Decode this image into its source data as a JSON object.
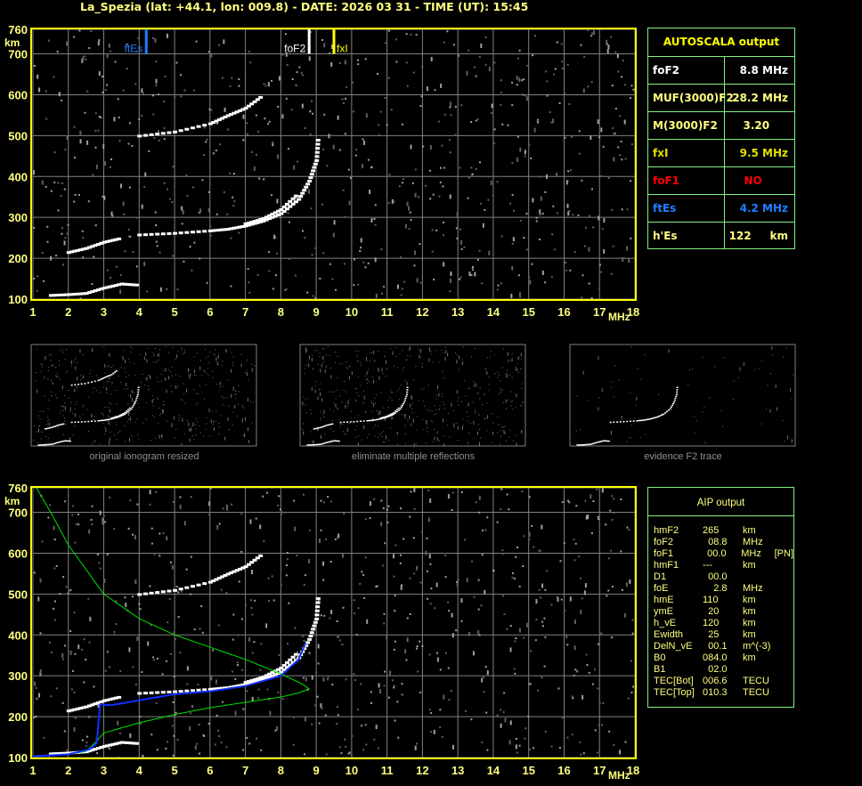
{
  "header": {
    "title": "La_Spezia (lat: +44.1, lon: 009.8) - DATE: 2026 03 31 - TIME (UT): 15:45"
  },
  "colors": {
    "axis": "#ffff00",
    "grid": "#808080",
    "panel_border": "#80f080",
    "ftEs": "#1e7fff",
    "foF2": "#ffffff",
    "fxI": "#ffff00",
    "foF1": "#ff0000",
    "profile": "#00e000",
    "fit": "#1030ff"
  },
  "autoscala": {
    "title": "AUTOSCALA output",
    "rows": [
      {
        "key": "foF2",
        "value": "8.8 MHz",
        "color": "#ffffff"
      },
      {
        "key": "MUF(3000)F2",
        "value": "28.2 MHz",
        "color": "#ffff80"
      },
      {
        "key": "M(3000)F2",
        "value": "3.20     ",
        "color": "#ffff80"
      },
      {
        "key": "fxI",
        "value": "9.5 MHz",
        "color": "#e0e000"
      },
      {
        "key": "foF1",
        "value": "NO       ",
        "color": "#ff0000"
      },
      {
        "key": "ftEs",
        "value": "4.2 MHz",
        "color": "#1e7fff"
      },
      {
        "key": "h'Es",
        "value": "122     km",
        "color": "#ffff80"
      }
    ]
  },
  "aip": {
    "title": "AIP output",
    "rows": [
      [
        "hmF2",
        "265",
        "km",
        ""
      ],
      [
        "foF2",
        "  08.8",
        "MHz",
        ""
      ],
      [
        "foF1",
        "  00.0",
        "MHz",
        "[PN]"
      ],
      [
        "hmF1",
        "---",
        "km",
        ""
      ],
      [
        "D1",
        "  00.0",
        "",
        ""
      ],
      [
        "foE",
        "    2.8",
        "MHz",
        ""
      ],
      [
        "hmE",
        "110",
        "km",
        ""
      ],
      [
        "ymE",
        "  20",
        "km",
        ""
      ],
      [
        "h_vE",
        "120",
        "km",
        ""
      ],
      [
        "Ewidth",
        "  25",
        "km",
        ""
      ],
      [
        "DelN_vE",
        "  00.1",
        "m^(-3)",
        ""
      ],
      [
        "B0",
        "084.0",
        "km",
        ""
      ],
      [
        "B1",
        "  02.0",
        "",
        ""
      ],
      [
        "TEC[Bot]",
        "006.6",
        "TECU",
        ""
      ],
      [
        "TEC[Top]",
        "010.3",
        "TECU",
        ""
      ]
    ]
  },
  "thumbnails": [
    {
      "caption": "original ionogram resized"
    },
    {
      "caption": "eliminate multiple reflections"
    },
    {
      "caption": "evidence F2 trace"
    }
  ],
  "chart_data": [
    {
      "type": "scatter",
      "xlabel": "MHz",
      "ylabel": "km",
      "xlim": [
        1,
        18
      ],
      "ylim": [
        100,
        760
      ],
      "xticks": [
        "1",
        "2",
        "3",
        "4",
        "5",
        "6",
        "7",
        "8",
        "9",
        "10",
        "11",
        "12",
        "13",
        "14",
        "15",
        "16",
        "17",
        "18"
      ],
      "yticks": [
        "100",
        "200",
        "300",
        "400",
        "500",
        "600",
        "700",
        "760"
      ],
      "grid": true,
      "markers": [
        {
          "name": "ftEs",
          "x": 4.2
        },
        {
          "name": "foF2",
          "x": 8.8
        },
        {
          "name": "fxI",
          "x": 9.5
        }
      ],
      "traces": [
        {
          "x": [
            1.5,
            2,
            2.5,
            3,
            3.5,
            4
          ],
          "y": [
            110,
            112,
            115,
            128,
            138,
            135
          ]
        },
        {
          "x": [
            2,
            2.5,
            3,
            3.5
          ],
          "y": [
            215,
            225,
            240,
            250
          ]
        },
        {
          "x": [
            4,
            5,
            6,
            6.5,
            7,
            7.5,
            8,
            8.5,
            8.8,
            9,
            9.05
          ],
          "y": [
            258,
            262,
            268,
            272,
            280,
            292,
            310,
            345,
            390,
            440,
            500
          ]
        },
        {
          "x": [
            7,
            7.5,
            8,
            8.5
          ],
          "y": [
            285,
            298,
            320,
            360
          ]
        },
        {
          "x": [
            4,
            5,
            6,
            6.5,
            7,
            7.5
          ],
          "y": [
            500,
            510,
            530,
            550,
            568,
            600
          ]
        }
      ]
    },
    {
      "type": "line",
      "xlabel": "MHz",
      "ylabel": "km",
      "xlim": [
        1,
        18
      ],
      "ylim": [
        100,
        760
      ],
      "xticks": [
        "1",
        "2",
        "3",
        "4",
        "5",
        "6",
        "7",
        "8",
        "9",
        "10",
        "11",
        "12",
        "13",
        "14",
        "15",
        "16",
        "17",
        "18"
      ],
      "yticks": [
        "100",
        "200",
        "300",
        "400",
        "500",
        "600",
        "700",
        "760"
      ],
      "grid": true,
      "series": [
        {
          "x": [
            1.1,
            1.5,
            2,
            3,
            4,
            5,
            6,
            7,
            8,
            8.6,
            8.8,
            8.5,
            8,
            7,
            6,
            5,
            4,
            3,
            2.8,
            2.5,
            2,
            1
          ],
          "y": [
            760,
            700,
            620,
            500,
            440,
            400,
            370,
            340,
            305,
            280,
            268,
            258,
            248,
            235,
            222,
            205,
            185,
            160,
            140,
            115,
            108,
            104
          ]
        },
        {
          "x": [
            1,
            2,
            2.6,
            2.8,
            2.9,
            3.2,
            4,
            5,
            6,
            7,
            8,
            8.5,
            8.7
          ],
          "y": [
            103,
            108,
            120,
            135,
            230,
            228,
            240,
            255,
            262,
            275,
            300,
            340,
            380
          ]
        }
      ]
    }
  ]
}
